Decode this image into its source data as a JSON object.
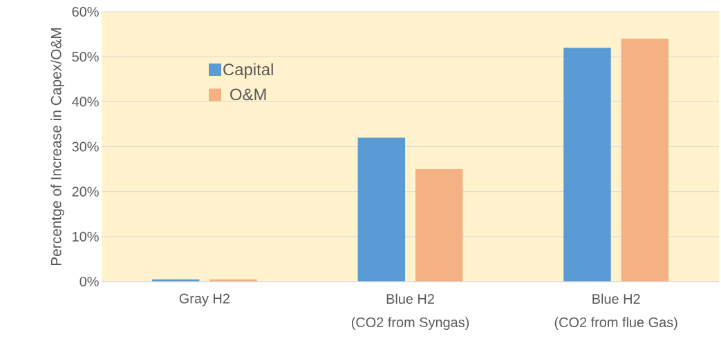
{
  "chart_data": {
    "type": "bar",
    "ylabel": "Percentge of Increase in Capex/O&M",
    "categories": [
      "Gray H2",
      "Blue H2\n(CO2 from Syngas)",
      "Blue H2\n(CO2 from flue Gas)"
    ],
    "series": [
      {
        "name": "Capital",
        "color": "#5b9bd5",
        "values": [
          0.5,
          32,
          52
        ]
      },
      {
        "name": "O&M",
        "color": "#f4b183",
        "values": [
          0.5,
          25,
          54
        ]
      }
    ],
    "ylim": [
      0,
      60
    ],
    "yticks": [
      {
        "value": 0,
        "label": "0%"
      },
      {
        "value": 10,
        "label": "10%"
      },
      {
        "value": 20,
        "label": "20%"
      },
      {
        "value": 30,
        "label": "30%"
      },
      {
        "value": 40,
        "label": "40%"
      },
      {
        "value": 50,
        "label": "50%"
      },
      {
        "value": 60,
        "label": "60%"
      }
    ],
    "grid": "y",
    "legend": "top left"
  }
}
